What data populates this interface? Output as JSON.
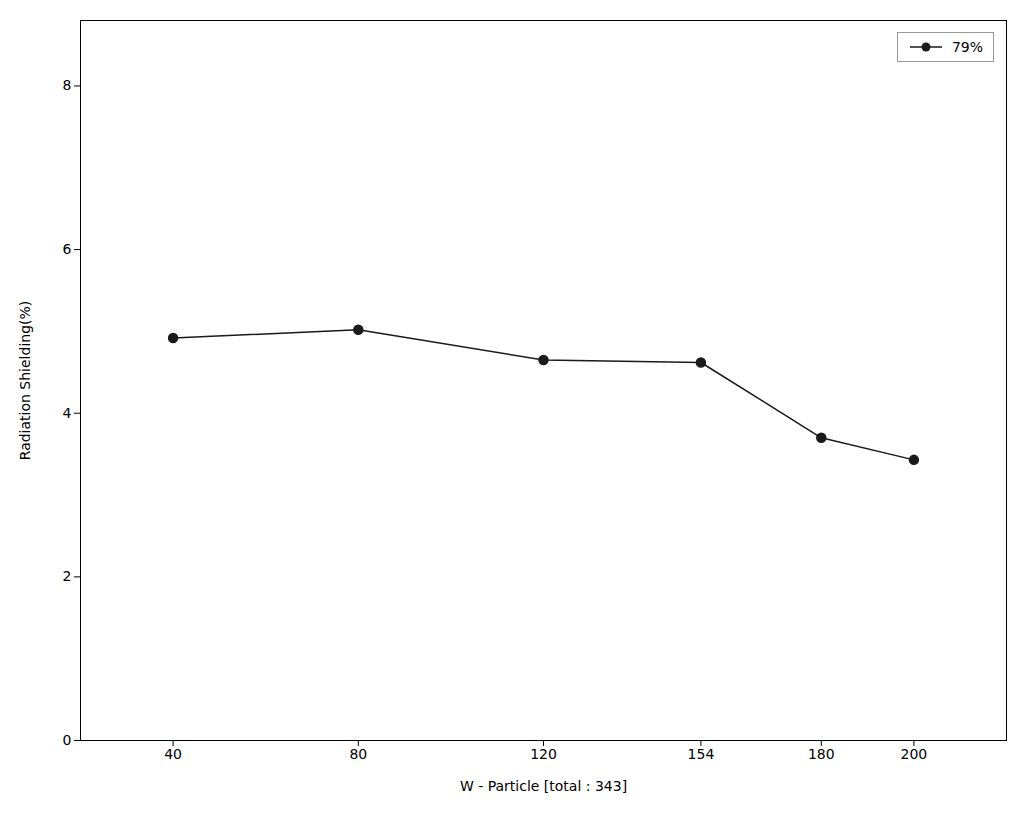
{
  "chart_data": {
    "type": "line",
    "xlabel": "W - Particle [total : 343]",
    "ylabel": "Radiation Shielding(%)",
    "x": [
      40,
      80,
      120,
      154,
      180,
      200
    ],
    "series": [
      {
        "name": "79%",
        "color": "#1a1a1a",
        "marker": "circle",
        "values": [
          4.92,
          5.02,
          4.65,
          4.62,
          3.7,
          3.43
        ]
      }
    ],
    "xlim": [
      20,
      220
    ],
    "xticks": [
      40,
      80,
      120,
      154,
      180,
      200
    ],
    "ylim": [
      0,
      8.8
    ],
    "yticks": [
      0,
      2,
      4,
      6,
      8
    ],
    "grid": false,
    "legend": "upper right"
  }
}
